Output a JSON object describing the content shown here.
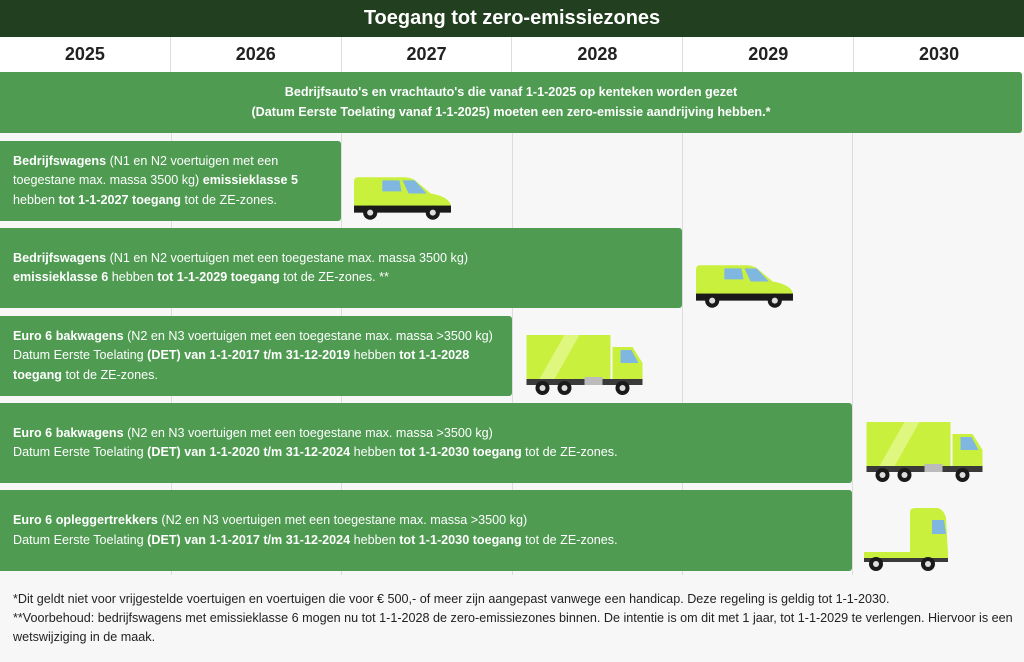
{
  "header": {
    "title": "Toegang tot zero-emissiezones"
  },
  "years": [
    "2025",
    "2026",
    "2027",
    "2028",
    "2029",
    "2030"
  ],
  "rows": [
    {
      "lines": [
        [
          {
            "text": "Bedrijfsauto's en vrachtauto's die vanaf 1-1-2025 op kenteken worden gezet",
            "bold": true
          }
        ],
        [
          {
            "text": "(Datum Eerste Toelating vanaf 1-1-2025) moeten een zero-emissie aandrijving hebben.*",
            "bold": true
          }
        ]
      ]
    },
    {
      "lines": [
        [
          {
            "text": "Bedrijfswagens",
            "bold": true
          },
          {
            "text": " (N1 en N2 voertuigen met een",
            "bold": false
          }
        ],
        [
          {
            "text": "toegestane max. massa 3500 kg) ",
            "bold": false
          },
          {
            "text": "emissieklasse 5",
            "bold": true
          }
        ],
        [
          {
            "text": "hebben ",
            "bold": false
          },
          {
            "text": "tot 1-1-2027 toegang",
            "bold": true
          },
          {
            "text": " tot de ZE-zones.",
            "bold": false
          }
        ]
      ]
    },
    {
      "lines": [
        [
          {
            "text": "Bedrijfswagens",
            "bold": true
          },
          {
            "text": " (N1 en N2 voertuigen met een toegestane max. massa 3500 kg)",
            "bold": false
          }
        ],
        [
          {
            "text": "emissieklasse 6",
            "bold": true
          },
          {
            "text": " hebben ",
            "bold": false
          },
          {
            "text": "tot 1-1-2029 toegang",
            "bold": true
          },
          {
            "text": " tot de ZE-zones. **",
            "bold": false
          }
        ]
      ]
    },
    {
      "lines": [
        [
          {
            "text": "Euro 6 bakwagens",
            "bold": true
          },
          {
            "text": " (N2 en N3 voertuigen met een toegestane max. massa >3500 kg)",
            "bold": false
          }
        ],
        [
          {
            "text": "Datum Eerste Toelating ",
            "bold": false
          },
          {
            "text": "(DET) van 1-1-2017 t/m 31-12-2019",
            "bold": true
          },
          {
            "text": " hebben ",
            "bold": false
          },
          {
            "text": "tot 1-1-2028",
            "bold": true
          }
        ],
        [
          {
            "text": "toegang",
            "bold": true
          },
          {
            "text": " tot de ZE-zones.",
            "bold": false
          }
        ]
      ]
    },
    {
      "lines": [
        [
          {
            "text": "Euro 6 bakwagens",
            "bold": true
          },
          {
            "text": " (N2 en N3 voertuigen met een toegestane max. massa >3500 kg)",
            "bold": false
          }
        ],
        [
          {
            "text": "Datum Eerste Toelating ",
            "bold": false
          },
          {
            "text": "(DET) van 1-1-2020 t/m 31-12-2024",
            "bold": true
          },
          {
            "text": " hebben ",
            "bold": false
          },
          {
            "text": "tot 1-1-2030 toegang",
            "bold": true
          },
          {
            "text": " tot de ZE-zones.",
            "bold": false
          }
        ]
      ]
    },
    {
      "lines": [
        [
          {
            "text": "Euro 6 opleggertrekkers",
            "bold": true
          },
          {
            "text": " (N2 en N3 voertuigen met een toegestane max. massa >3500 kg)",
            "bold": false
          }
        ],
        [
          {
            "text": "Datum Eerste Toelating ",
            "bold": false
          },
          {
            "text": "(DET) van 1-1-2017 t/m 31-12-2024",
            "bold": true
          },
          {
            "text": " hebben ",
            "bold": false
          },
          {
            "text": "tot 1-1-2030 toegang",
            "bold": true
          },
          {
            "text": " tot de ZE-zones.",
            "bold": false
          }
        ]
      ]
    }
  ],
  "footnotes": [
    "*Dit geldt niet voor vrijgestelde voertuigen en voertuigen die voor € 500,- of meer zijn aangepast vanwege een handicap. Deze regeling is geldig tot 1-1-2030.",
    "**Voorbehoud: bedrijfswagens met emissieklasse 6 mogen nu tot 1-1-2028 de zero-emissiezones binnen. De intentie is om dit met 1 jaar, tot 1-1-2029 te verlengen. Hiervoor is een wetswijziging in de maak."
  ]
}
